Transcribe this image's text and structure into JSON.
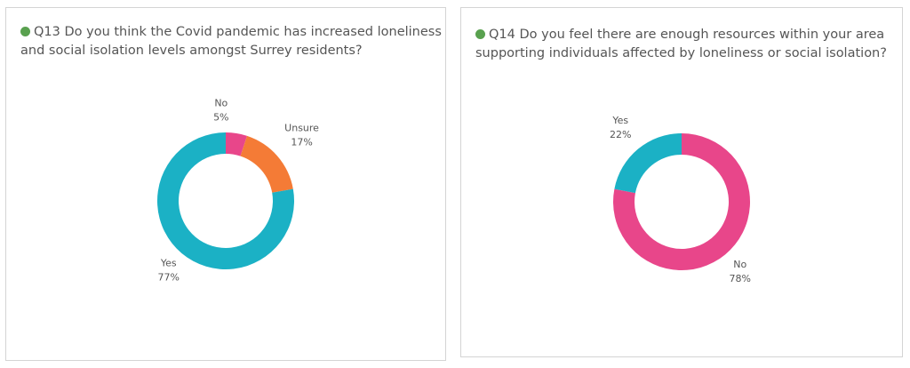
{
  "panels": [
    {
      "id": "q13",
      "title": "Q13 Do you think the Covid pandemic has increased loneliness and social isolation levels amongst Surrey residents?",
      "dot_color": "#59a14f"
    },
    {
      "id": "q14",
      "title": "Q14 Do you feel there are enough resources within your area supporting individuals affected by loneliness or social isolation?",
      "dot_color": "#59a14f"
    }
  ],
  "chart_data": [
    {
      "type": "pie",
      "style": "donut",
      "slices": [
        {
          "label": "No",
          "value": 5,
          "pct_text": "5%",
          "color": "#e8468a"
        },
        {
          "label": "Unsure",
          "value": 17,
          "pct_text": "17%",
          "color": "#f47b36"
        },
        {
          "label": "Yes",
          "value": 77,
          "pct_text": "77%",
          "color": "#1bb1c5"
        }
      ]
    },
    {
      "type": "pie",
      "style": "donut",
      "slices": [
        {
          "label": "No",
          "value": 78,
          "pct_text": "78%",
          "color": "#e8468a"
        },
        {
          "label": "Yes",
          "value": 22,
          "pct_text": "22%",
          "color": "#1bb1c5"
        }
      ]
    }
  ]
}
